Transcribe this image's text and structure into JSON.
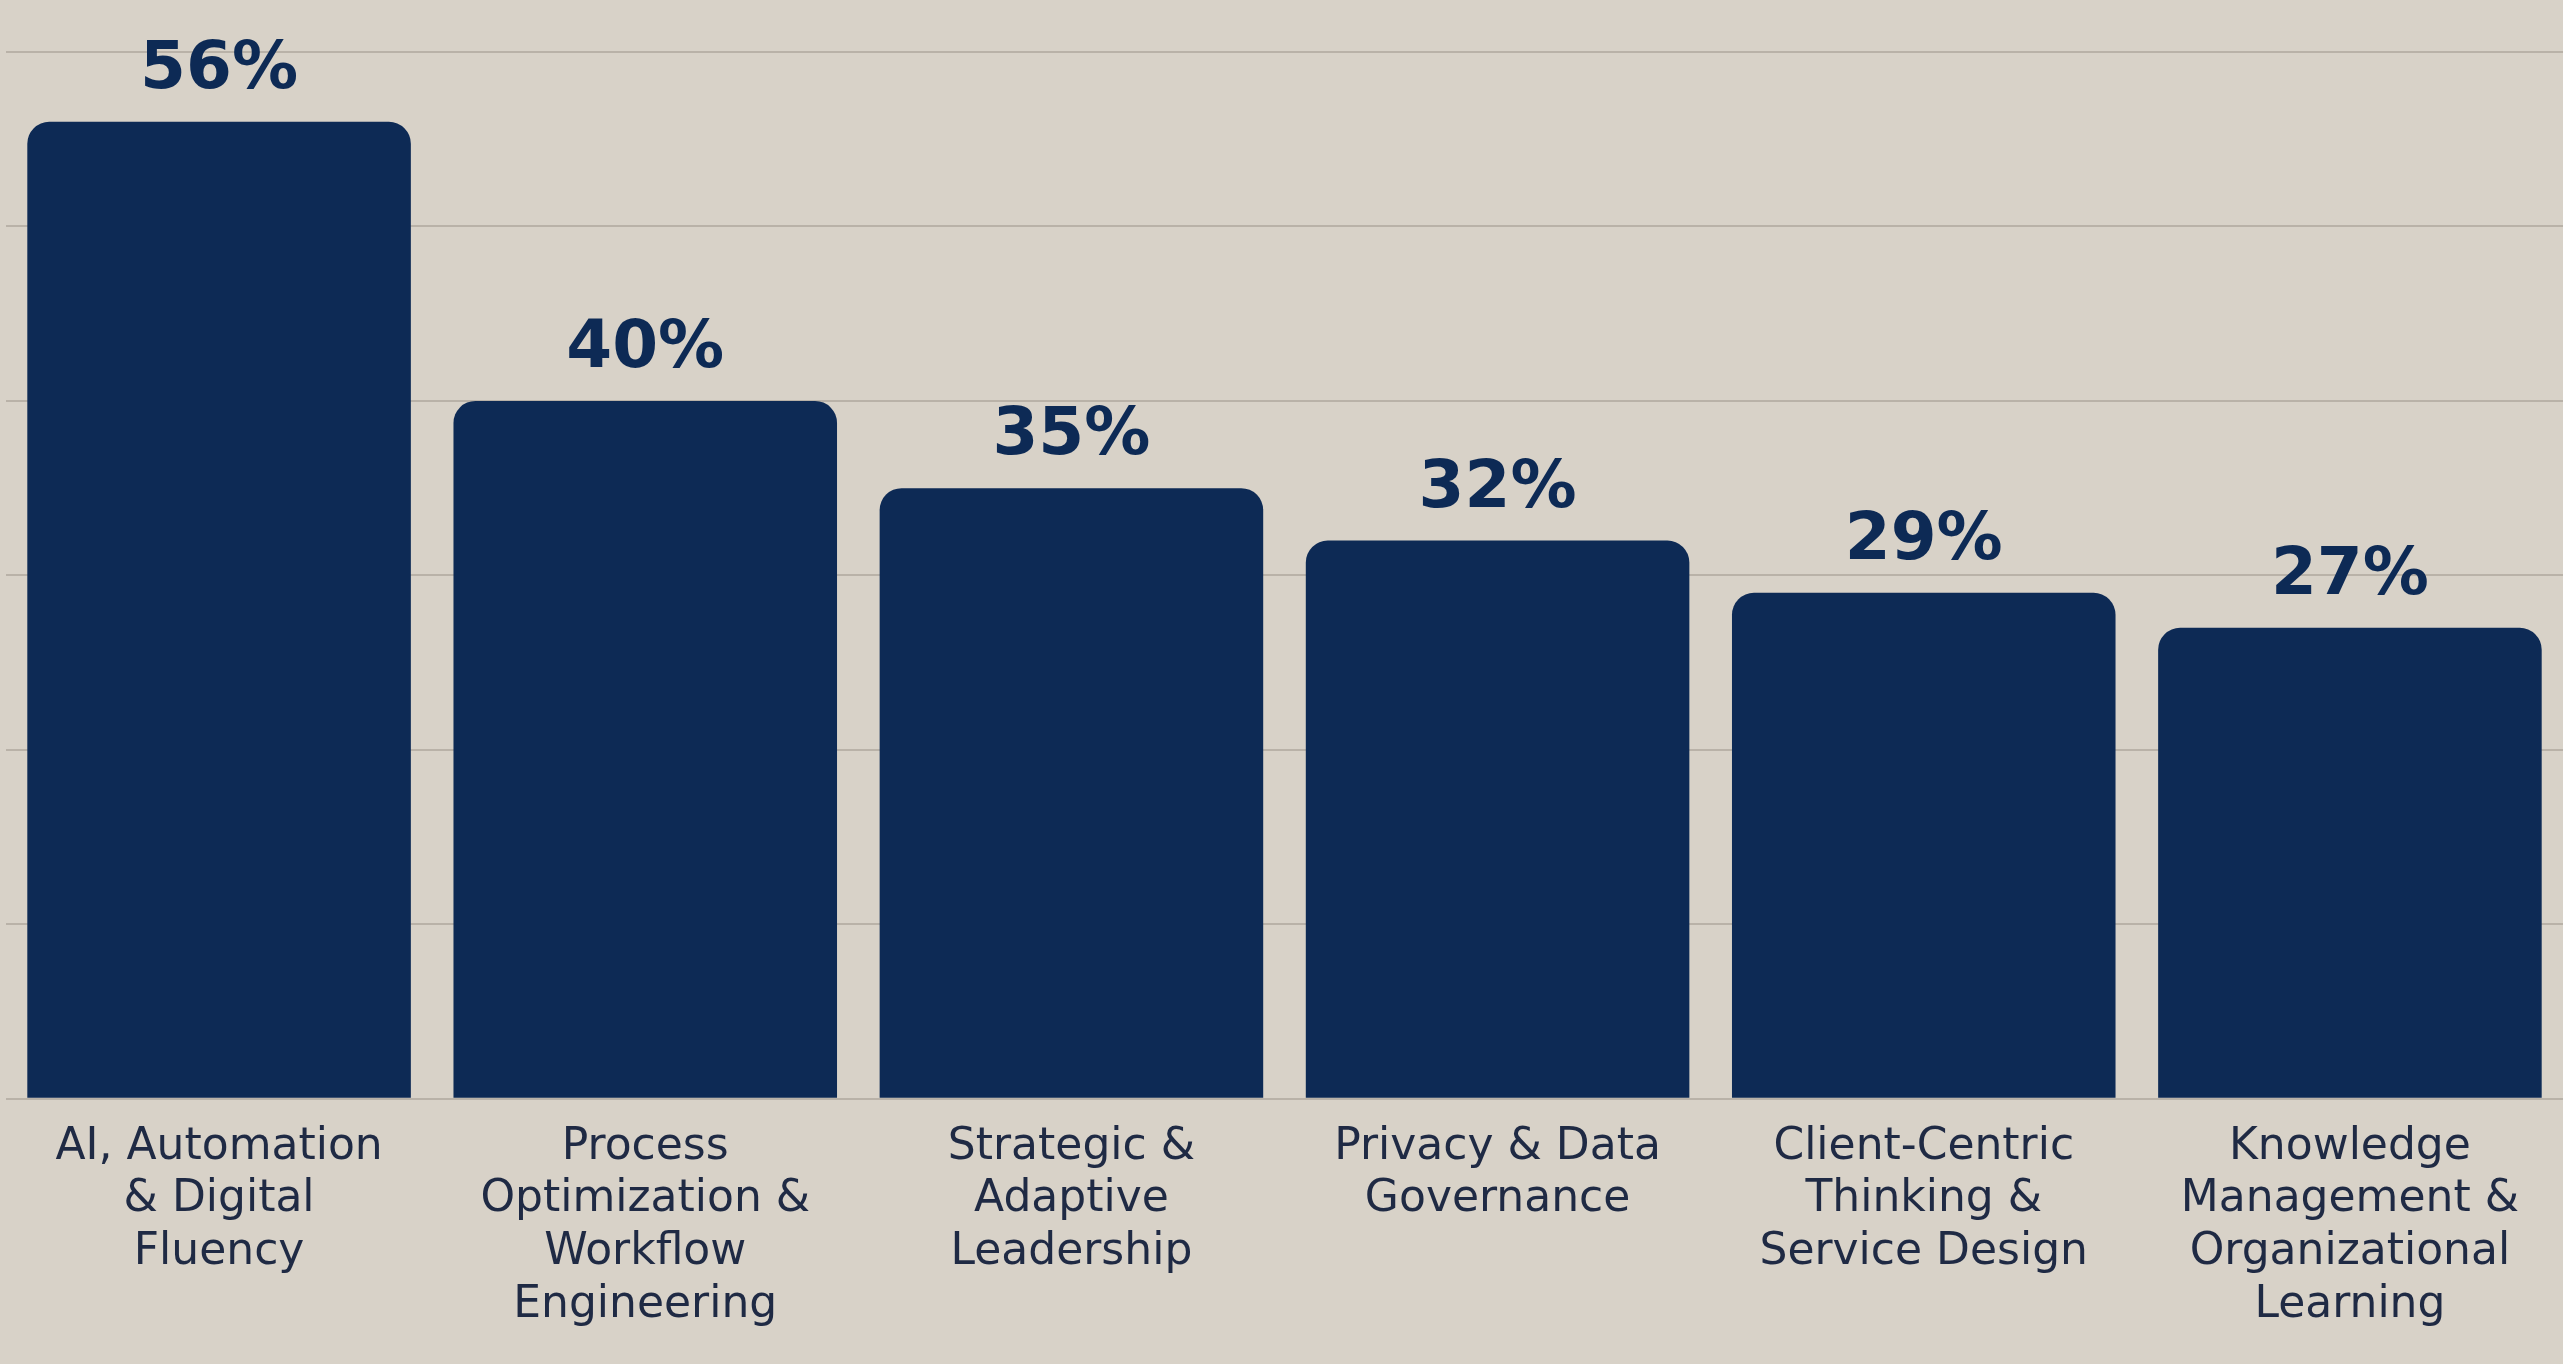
{
  "chart_data": {
    "type": "bar",
    "categories": [
      "AI, Automation & Digital Fluency",
      "Process Optimization & Workflow Engineering",
      "Strategic & Adaptive Leadership",
      "Privacy & Data Governance",
      "Client-Centric Thinking & Service Design",
      "Knowledge Management & Organizational Learning"
    ],
    "values": [
      56,
      40,
      35,
      32,
      29,
      27
    ],
    "value_labels": [
      "56%",
      "40%",
      "35%",
      "32%",
      "29%",
      "27%"
    ],
    "color": "#0d2a55",
    "ylim": [
      0,
      60
    ],
    "yticks": [
      {
        "value": 0,
        "label": null
      },
      {
        "value": 10,
        "label": null
      },
      {
        "value": 20,
        "label": null
      },
      {
        "value": 30,
        "label": null
      },
      {
        "value": 40,
        "label": null
      },
      {
        "value": 50,
        "label": null
      },
      {
        "value": 60,
        "label": null
      }
    ],
    "grid": "y",
    "tick_labels": "x"
  }
}
